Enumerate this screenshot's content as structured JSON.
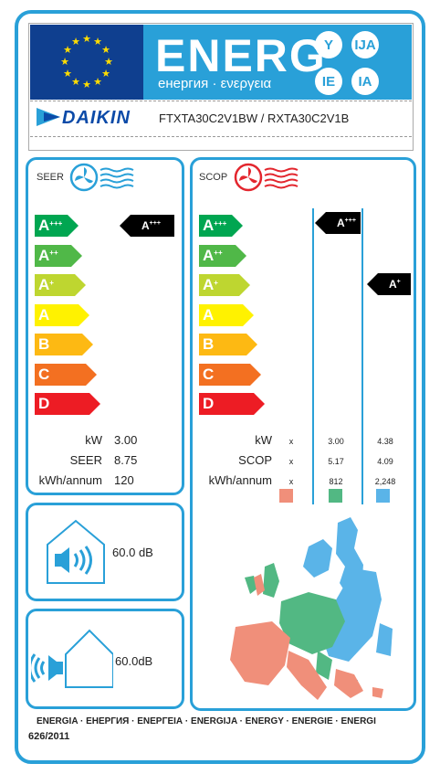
{
  "header": {
    "energ_word": "ENERG",
    "energ_sub": "енергия · ενεργεια",
    "lang_badges": [
      "Y",
      "IJA",
      "IE",
      "IA"
    ],
    "brand": "DAIKIN",
    "model": "FTXTA30C2V1BW / RXTA30C2V1B"
  },
  "seer": {
    "title": "SEER",
    "classes": [
      "A+++",
      "A++",
      "A+",
      "A",
      "B",
      "C",
      "D"
    ],
    "rating": "A+++",
    "rows": [
      {
        "label": "kW",
        "value": "3.00"
      },
      {
        "label": "SEER",
        "value": "8.75"
      },
      {
        "label": "kWh/annum",
        "value": "120"
      }
    ]
  },
  "scop": {
    "title": "SCOP",
    "classes": [
      "A+++",
      "A++",
      "A+",
      "A",
      "B",
      "C",
      "D"
    ],
    "rating_warm": "A+++",
    "rating_average": "A+",
    "rows": [
      {
        "label": "kW",
        "cold": "x",
        "average": "3.00",
        "warm": "4.38"
      },
      {
        "label": "SCOP",
        "cold": "x",
        "average": "5.17",
        "warm": "4.09"
      },
      {
        "label": "kWh/annum",
        "cold": "x",
        "average": "812",
        "warm": "2,248"
      }
    ],
    "zone_colors": {
      "cold": "#f08f7a",
      "average": "#52b883",
      "warm": "#5ab4e8"
    }
  },
  "noise_indoor": {
    "value": "60.0",
    "unit": "dB"
  },
  "noise_outdoor": {
    "value": "60.0",
    "unit": "dB"
  },
  "footer": {
    "languages": "ENERGIA · ЕНЕРГИЯ · ΕΝΕΡΓΕΙΑ · ENERGIJA · ENERGY · ENERGIE · ENERGI",
    "regulation": "626/2011"
  },
  "colors": {
    "frame": "#29a0d8",
    "eu_blue": "#0f3f8f",
    "class_colors": [
      "#00a651",
      "#50b848",
      "#bed630",
      "#fff200",
      "#fdb913",
      "#f37021",
      "#ed1c24"
    ]
  }
}
